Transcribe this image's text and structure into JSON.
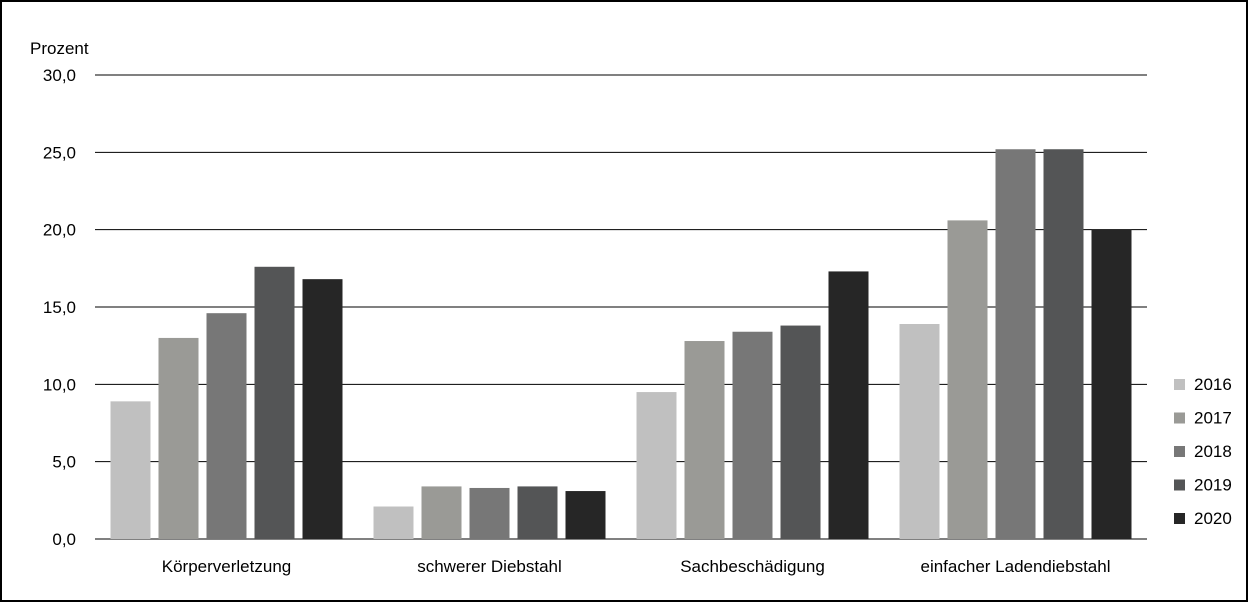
{
  "chart_data": {
    "type": "bar",
    "ylabel": "Prozent",
    "ylim": [
      0,
      30
    ],
    "yticks": [
      "0,0",
      "5,0",
      "10,0",
      "15,0",
      "20,0",
      "25,0",
      "30,0"
    ],
    "categories": [
      "Körperverletzung",
      "schwerer Diebstahl",
      "Sachbeschädigung",
      "einfacher Ladendiebstahl"
    ],
    "series": [
      {
        "name": "2016",
        "color": "#c0c0c0",
        "values": [
          8.9,
          2.1,
          9.5,
          13.9
        ]
      },
      {
        "name": "2017",
        "color": "#9a9a96",
        "values": [
          13.0,
          3.4,
          12.8,
          20.6
        ]
      },
      {
        "name": "2018",
        "color": "#777777",
        "values": [
          14.6,
          3.3,
          13.4,
          25.2
        ]
      },
      {
        "name": "2019",
        "color": "#545556",
        "values": [
          17.6,
          3.4,
          13.8,
          25.2
        ]
      },
      {
        "name": "2020",
        "color": "#262626",
        "values": [
          16.8,
          3.1,
          17.3,
          20.0
        ]
      }
    ],
    "grid": true,
    "legend": "right"
  }
}
